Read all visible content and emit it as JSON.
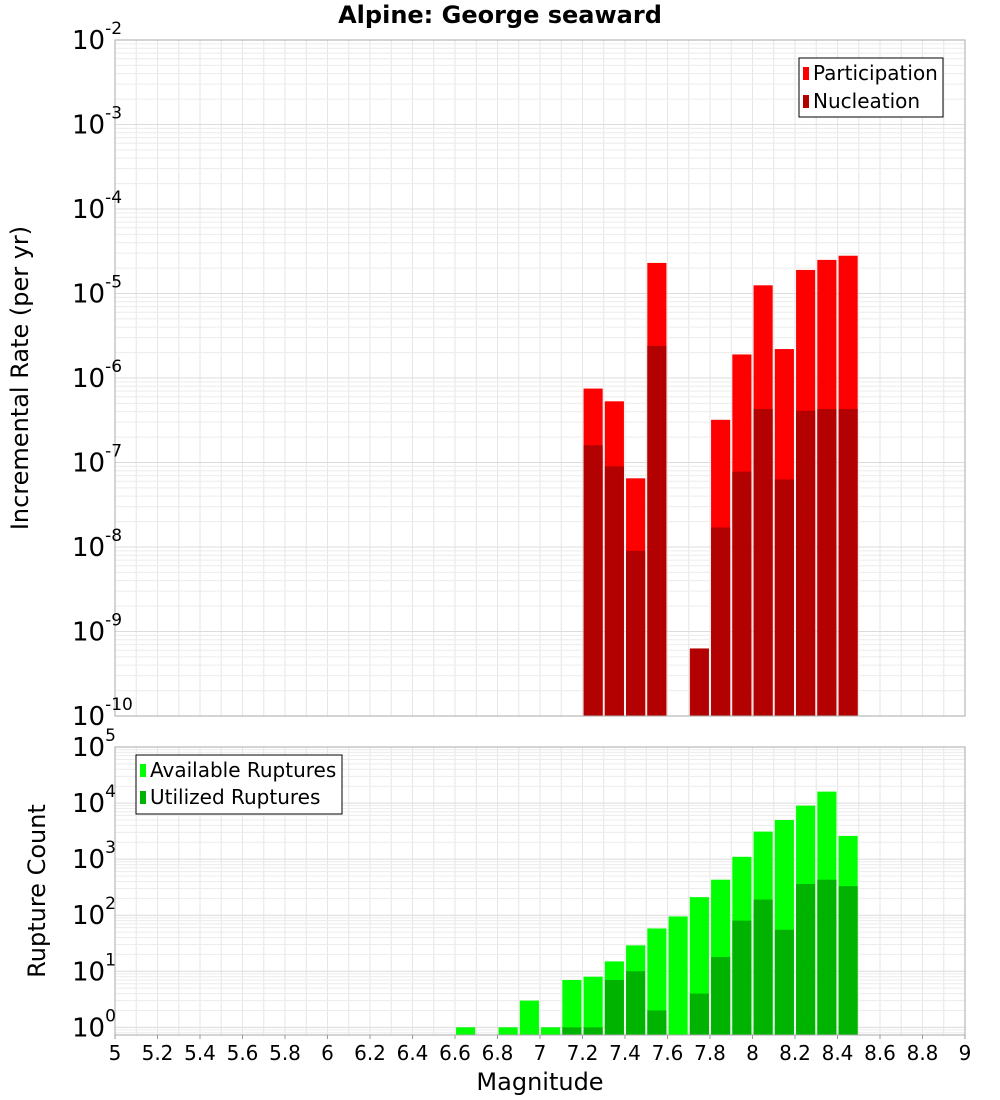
{
  "chart_data": [
    {
      "type": "bar",
      "title": "Alpine: George seaward",
      "xlabel": "Magnitude",
      "ylabel": "Incremental Rate (per yr)",
      "yscale": "log",
      "xlim": [
        5,
        9
      ],
      "ylim": [
        1e-10,
        0.01
      ],
      "y_ticks": [
        {
          "base": "10",
          "exp": "-10"
        },
        {
          "base": "10",
          "exp": "-9"
        },
        {
          "base": "10",
          "exp": "-8"
        },
        {
          "base": "10",
          "exp": "-7"
        },
        {
          "base": "10",
          "exp": "-6"
        },
        {
          "base": "10",
          "exp": "-5"
        },
        {
          "base": "10",
          "exp": "-4"
        },
        {
          "base": "10",
          "exp": "-3"
        },
        {
          "base": "10",
          "exp": "-2"
        }
      ],
      "grid": true,
      "legend_position": "top-right",
      "x": [
        7.25,
        7.35,
        7.45,
        7.55,
        7.75,
        7.85,
        7.95,
        8.05,
        8.15,
        8.25,
        8.35,
        8.45
      ],
      "series": [
        {
          "name": "Participation",
          "color": "#ff0000",
          "values": [
            7.5e-07,
            5.3e-07,
            6.5e-08,
            2.3e-05,
            null,
            3.2e-07,
            1.9e-06,
            1.25e-05,
            2.2e-06,
            1.9e-05,
            2.5e-05,
            2.8e-05
          ]
        },
        {
          "name": "Nucleation",
          "color": "#b30000",
          "values": [
            1.6e-07,
            9e-08,
            9e-09,
            2.4e-06,
            6.3e-10,
            1.7e-08,
            7.8e-08,
            4.3e-07,
            6.3e-08,
            4.1e-07,
            4.3e-07,
            4.3e-07
          ]
        }
      ]
    },
    {
      "type": "bar",
      "xlabel": "Magnitude",
      "ylabel": "Rupture Count",
      "yscale": "log",
      "xlim": [
        5,
        9
      ],
      "ylim": [
        0.73,
        100000
      ],
      "y_ticks": [
        {
          "base": "10",
          "exp": "0"
        },
        {
          "base": "10",
          "exp": "1"
        },
        {
          "base": "10",
          "exp": "2"
        },
        {
          "base": "10",
          "exp": "3"
        },
        {
          "base": "10",
          "exp": "4"
        },
        {
          "base": "10",
          "exp": "5"
        }
      ],
      "x_tick_labels": [
        "5",
        "5.2",
        "5.4",
        "5.6",
        "5.8",
        "6",
        "6.2",
        "6.4",
        "6.6",
        "6.8",
        "7",
        "7.2",
        "7.4",
        "7.6",
        "7.8",
        "8",
        "8.2",
        "8.4",
        "8.6",
        "8.8",
        "9"
      ],
      "grid": true,
      "legend_position": "top-left",
      "x": [
        6.65,
        6.85,
        6.95,
        7.05,
        7.15,
        7.25,
        7.35,
        7.45,
        7.55,
        7.65,
        7.75,
        7.85,
        7.95,
        8.05,
        8.15,
        8.25,
        8.35,
        8.45
      ],
      "series": [
        {
          "name": "Available Ruptures",
          "color": "#00ff00",
          "values": [
            1,
            1,
            3,
            1,
            7,
            8,
            15,
            29,
            58,
            95,
            210,
            430,
            1100,
            3100,
            5000,
            9000,
            16000,
            2600
          ]
        },
        {
          "name": "Utilized Ruptures",
          "color": "#00b300",
          "values": [
            null,
            null,
            null,
            null,
            1,
            1,
            7,
            10,
            2,
            null,
            4,
            18,
            80,
            190,
            55,
            360,
            430,
            330
          ]
        }
      ]
    }
  ]
}
